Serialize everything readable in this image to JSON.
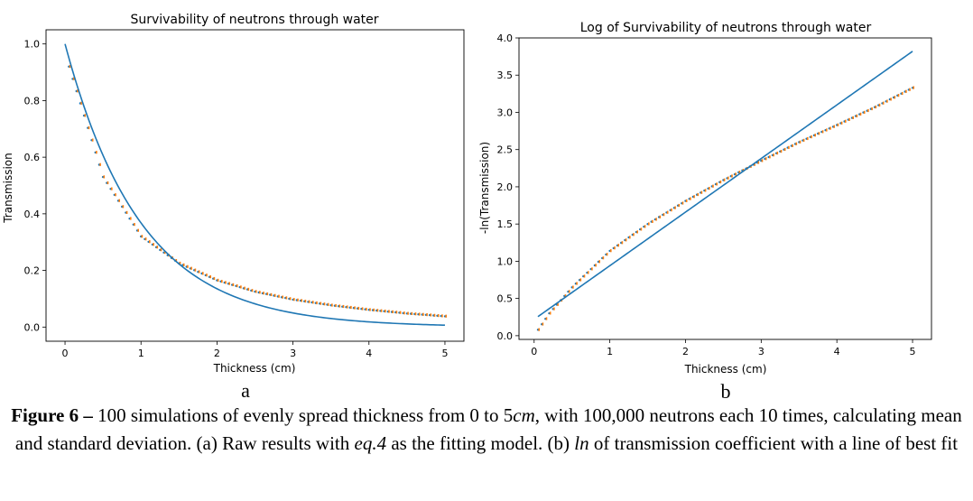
{
  "chart_data": [
    {
      "type": "scatter",
      "title": "Survivability of neutrons through water",
      "xlabel": "Thickness (cm)",
      "ylabel": "Transmission",
      "xlim": [
        -0.25,
        5.25
      ],
      "ylim": [
        -0.05,
        1.05
      ],
      "xticks": [
        0,
        1,
        2,
        3,
        4,
        5
      ],
      "xtick_labels": [
        "0",
        "1",
        "2",
        "3",
        "4",
        "5"
      ],
      "yticks": [
        0.0,
        0.2,
        0.4,
        0.6,
        0.8,
        1.0
      ],
      "ytick_labels": [
        "0.0",
        "0.2",
        "0.4",
        "0.6",
        "0.8",
        "1.0"
      ],
      "grid": false,
      "points": {
        "x_start": 0.05,
        "x_end": 5.0,
        "count": 100,
        "anchors_x": [
          0,
          0.05,
          0.5,
          1,
          1.5,
          2,
          2.5,
          3,
          3.5,
          4,
          4.5,
          5
        ],
        "anchors_y": [
          1.0,
          0.92,
          0.53,
          0.32,
          0.225,
          0.165,
          0.125,
          0.097,
          0.077,
          0.061,
          0.048,
          0.038
        ]
      },
      "fit_line": {
        "model": "exp",
        "a": 1.0,
        "k": 1.0,
        "x_range": [
          0,
          5
        ]
      },
      "panel_label": "a"
    },
    {
      "type": "scatter",
      "title": "Log of Survivability of neutrons through water",
      "xlabel": "Thickness (cm)",
      "ylabel": "-ln(Transmission)",
      "xlim": [
        -0.2,
        5.25
      ],
      "ylim": [
        -0.05,
        4.0
      ],
      "xticks": [
        0,
        1,
        2,
        3,
        4,
        5
      ],
      "xtick_labels": [
        "0",
        "1",
        "2",
        "3",
        "4",
        "5"
      ],
      "yticks": [
        0.0,
        0.5,
        1.0,
        1.5,
        2.0,
        2.5,
        3.0,
        3.5,
        4.0
      ],
      "ytick_labels": [
        "0.0",
        "0.5",
        "1.0",
        "1.5",
        "2.0",
        "2.5",
        "3.0",
        "3.5",
        "4.0"
      ],
      "grid": false,
      "points": {
        "x_start": 0.05,
        "x_end": 5.0,
        "count": 100,
        "anchors_x": [
          0.05,
          0.2,
          0.5,
          1,
          1.5,
          2,
          2.5,
          3,
          3.5,
          4,
          4.5,
          5
        ],
        "anchors_y": [
          0.08,
          0.3,
          0.65,
          1.14,
          1.5,
          1.81,
          2.09,
          2.35,
          2.6,
          2.83,
          3.07,
          3.33
        ]
      },
      "fit_line": {
        "model": "linear",
        "slope": 0.72,
        "intercept": 0.22,
        "x_range": [
          0.05,
          5
        ]
      },
      "panel_label": "b"
    }
  ],
  "colors": {
    "line": "#1f77b4",
    "points_primary": "#1f77b4",
    "points_secondary": "#ff7f0e"
  },
  "caption": {
    "label": "Figure 6 –",
    "text_1": " 100 simulations of evenly spread thickness from 0 to 5",
    "unit": "cm",
    "text_2": ", with 100,000 neutrons each 10 times, calculating mean and standard deviation. (a) Raw results with ",
    "eq": "eq.4",
    "text_3": " as the fitting model. (b) ",
    "ln": "ln",
    "text_4": " of transmission coefficient with a line of best fit"
  }
}
